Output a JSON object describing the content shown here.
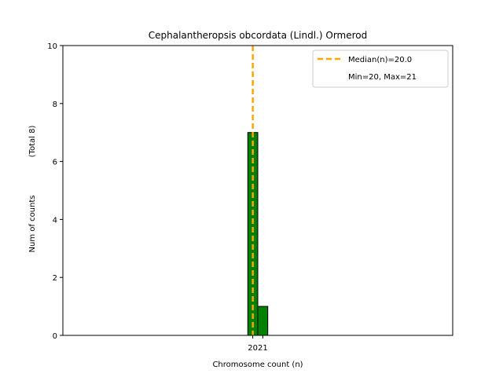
{
  "chart_data": {
    "type": "bar",
    "title": "Cephalantheropsis obcordata (Lindl.) Ormerod",
    "xlabel": "Chromosome count (n)",
    "ylabel": "Num of counts",
    "ylabel_total": "(Total 8)",
    "ylim": [
      0,
      10
    ],
    "yticks": [
      0,
      2,
      4,
      6,
      8,
      10
    ],
    "xlim": [
      1,
      40
    ],
    "xticks": [
      20,
      21
    ],
    "categories": [
      20,
      21
    ],
    "values": [
      7,
      1
    ],
    "bar_width": 1,
    "median": 20.0,
    "zero_baseline": [
      1,
      25
    ],
    "colors": {
      "bar": "#008000",
      "bar_edge": "#000000",
      "median": "#FFA500"
    },
    "legend": {
      "position": "top-right",
      "entries": [
        "Median(n)=20.0",
        "Min=20, Max=21"
      ]
    },
    "grid": false
  }
}
